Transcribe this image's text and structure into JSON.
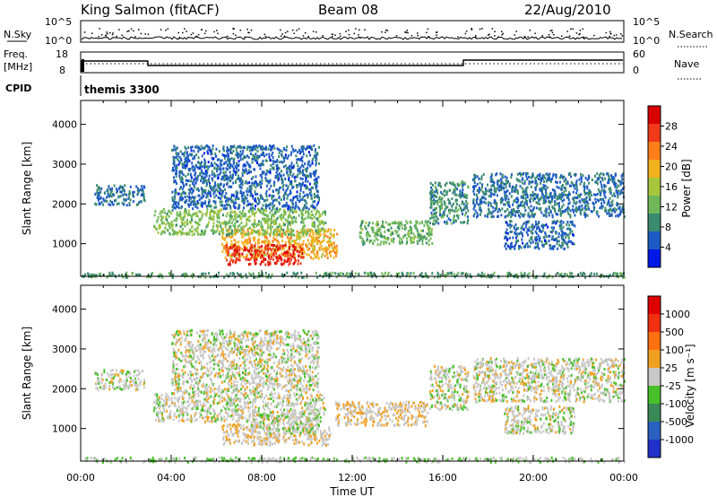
{
  "header": {
    "station": "King Salmon (fitACF)",
    "beam": "Beam 08",
    "date": "22/Aug/2010"
  },
  "noise_panel": {
    "left_label": "N.Sky",
    "right_label": "N.Search",
    "left_ticks": [
      "10^5",
      "10^0"
    ],
    "right_ticks": [
      "10^5",
      "10^0"
    ]
  },
  "freq_panel": {
    "left_label_1": "Freq.",
    "left_label_2": "[MHz]",
    "left_ticks": [
      "18",
      "8"
    ],
    "right_label": "Nave",
    "right_ticks": [
      "60",
      "0"
    ]
  },
  "cpid": {
    "label": "CPID",
    "value": "themis 3300"
  },
  "x_axis": {
    "label": "Time UT",
    "ticks": [
      "00:00",
      "04:00",
      "08:00",
      "12:00",
      "16:00",
      "20:00",
      "00:00"
    ]
  },
  "y_axis": {
    "label": "Slant Range [km]",
    "ticks": [
      "4000",
      "3000",
      "2000",
      "1000"
    ]
  },
  "power_colorbar": {
    "title": "Power [dB]",
    "labels": [
      "28",
      "24",
      "20",
      "16",
      "12",
      "8",
      "4"
    ],
    "colors": [
      "#0018e8",
      "#1d5bc4",
      "#3a8a70",
      "#6fb85a",
      "#a8c63c",
      "#f2b21e",
      "#ff7e1a",
      "#f03a1a",
      "#d90000"
    ]
  },
  "velocity_colorbar": {
    "title": "Velocity [m s⁻¹]",
    "labels": [
      "1000",
      "500",
      "100",
      "25",
      "-25",
      "-100",
      "-500",
      "-1000"
    ],
    "colors": [
      "#2030c8",
      "#2a60c0",
      "#3a8a58",
      "#48c02a",
      "#c8c8c8",
      "#f0a020",
      "#ff7010",
      "#f03010",
      "#e00000"
    ]
  },
  "chart_data": [
    {
      "type": "heatmap",
      "title": "Power [dB]",
      "xlabel": "Time UT",
      "ylabel": "Slant Range [km]",
      "xlim": [
        0,
        24
      ],
      "ylim": [
        180,
        4600
      ],
      "clim": [
        0,
        32
      ],
      "regions": [
        {
          "t0": 6.2,
          "t1": 11.3,
          "r0": 650,
          "r1": 1400,
          "value": 20
        },
        {
          "t0": 6.4,
          "t1": 9.8,
          "r0": 500,
          "r1": 1000,
          "value": 28
        },
        {
          "t0": 3.2,
          "t1": 10.8,
          "r0": 1250,
          "r1": 1900,
          "value": 13
        },
        {
          "t0": 12.3,
          "t1": 15.5,
          "r0": 1000,
          "r1": 1600,
          "value": 12
        },
        {
          "t0": 15.4,
          "t1": 17.1,
          "r0": 1500,
          "r1": 2600,
          "value": 9
        },
        {
          "t0": 0.6,
          "t1": 2.8,
          "r0": 2000,
          "r1": 2500,
          "value": 7
        },
        {
          "t0": 4.0,
          "t1": 10.5,
          "r0": 1900,
          "r1": 3500,
          "value": 6
        },
        {
          "t0": 17.3,
          "t1": 24.0,
          "r0": 1700,
          "r1": 2800,
          "value": 7
        },
        {
          "t0": 18.7,
          "t1": 21.8,
          "r0": 900,
          "r1": 1600,
          "value": 6
        },
        {
          "t0": 0.0,
          "t1": 24.0,
          "r0": 180,
          "r1": 300,
          "value": 10
        }
      ]
    },
    {
      "type": "heatmap",
      "title": "Velocity [m s⁻¹]",
      "xlabel": "Time UT",
      "ylabel": "Slant Range [km]",
      "xlim": [
        0,
        24
      ],
      "ylim": [
        180,
        4600
      ],
      "clim": [
        -1000,
        1000
      ],
      "regions": [
        {
          "t0": 6.2,
          "t1": 11.0,
          "r0": 600,
          "r1": 1150,
          "value": 80
        },
        {
          "t0": 11.2,
          "t1": 15.3,
          "r0": 1100,
          "r1": 1700,
          "value": 90
        },
        {
          "t0": 3.2,
          "t1": 10.8,
          "r0": 1200,
          "r1": 1900,
          "value": 0
        },
        {
          "t0": 7.5,
          "t1": 10.5,
          "r0": 900,
          "r1": 1400,
          "value": -60
        },
        {
          "t0": 15.4,
          "t1": 17.1,
          "r0": 1500,
          "r1": 2600,
          "value": 0
        },
        {
          "t0": 0.6,
          "t1": 2.8,
          "r0": 2000,
          "r1": 2500,
          "value": 0
        },
        {
          "t0": 4.0,
          "t1": 10.5,
          "r0": 1900,
          "r1": 3500,
          "value": 0
        },
        {
          "t0": 17.3,
          "t1": 24.0,
          "r0": 1700,
          "r1": 2800,
          "value": 0
        },
        {
          "t0": 18.7,
          "t1": 21.8,
          "r0": 900,
          "r1": 1600,
          "value": 0
        },
        {
          "t0": 0.0,
          "t1": 24.0,
          "r0": 180,
          "r1": 300,
          "value": -80
        }
      ]
    }
  ]
}
